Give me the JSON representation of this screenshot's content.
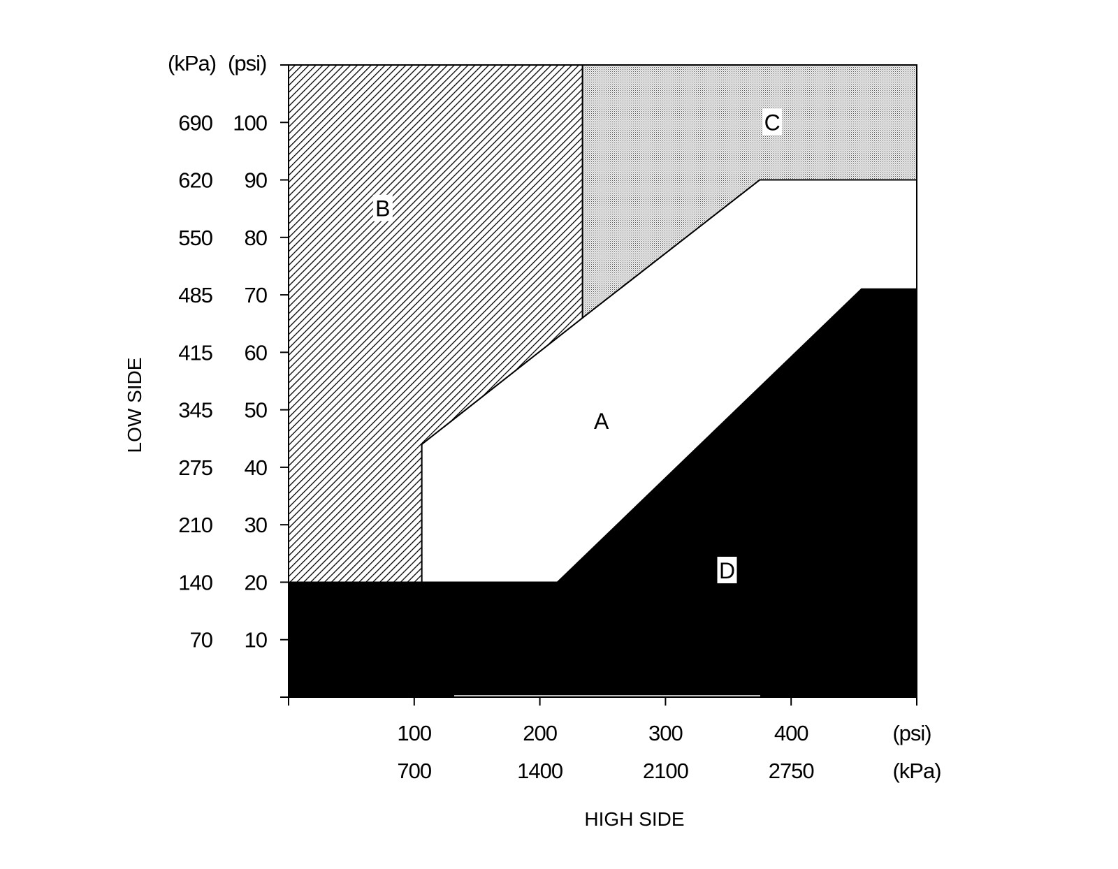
{
  "chart_data": {
    "type": "area",
    "title": "",
    "xlabel": "HIGH SIDE",
    "ylabel": "LOW SIDE",
    "xlim": [
      0,
      500
    ],
    "ylim": [
      0,
      110
    ],
    "grid": false,
    "x_ticks": [
      {
        "psi": "100",
        "kpa": "700"
      },
      {
        "psi": "200",
        "kpa": "1400"
      },
      {
        "psi": "300",
        "kpa": "2100"
      },
      {
        "psi": "400",
        "kpa": "2750"
      }
    ],
    "x_unit_labels": {
      "psi": "(psi)",
      "kpa": "(kPa)"
    },
    "y_ticks": [
      {
        "psi": "10",
        "kpa": "70"
      },
      {
        "psi": "20",
        "kpa": "140"
      },
      {
        "psi": "30",
        "kpa": "210"
      },
      {
        "psi": "40",
        "kpa": "275"
      },
      {
        "psi": "50",
        "kpa": "345"
      },
      {
        "psi": "60",
        "kpa": "415"
      },
      {
        "psi": "70",
        "kpa": "485"
      },
      {
        "psi": "80",
        "kpa": "550"
      },
      {
        "psi": "90",
        "kpa": "620"
      },
      {
        "psi": "100",
        "kpa": "690"
      }
    ],
    "y_unit_labels": {
      "kpa": "(kPa)",
      "psi": "(psi)"
    },
    "regions": [
      {
        "name": "A",
        "fill": "#ffffff",
        "polygon": [
          [
            106,
            20
          ],
          [
            106,
            44
          ],
          [
            234,
            66
          ],
          [
            375,
            90
          ],
          [
            500,
            90
          ],
          [
            500,
            71
          ],
          [
            456,
            71
          ],
          [
            214,
            20
          ]
        ],
        "label_at": [
          249,
          48
        ]
      },
      {
        "name": "B",
        "fill": "hatch",
        "polygon": [
          [
            0,
            20
          ],
          [
            0,
            110
          ],
          [
            234,
            110
          ],
          [
            234,
            66
          ],
          [
            106,
            44
          ],
          [
            106,
            20
          ]
        ],
        "label_at": [
          75,
          85
        ]
      },
      {
        "name": "C",
        "fill": "stipple",
        "polygon": [
          [
            234,
            110
          ],
          [
            500,
            110
          ],
          [
            500,
            90
          ],
          [
            375,
            90
          ],
          [
            234,
            66
          ]
        ],
        "label_at": [
          385,
          100
        ]
      },
      {
        "name": "D",
        "fill": "#000000",
        "polygon": [
          [
            0,
            0
          ],
          [
            0,
            20
          ],
          [
            214,
            20
          ],
          [
            456,
            71
          ],
          [
            500,
            71
          ],
          [
            500,
            0
          ]
        ],
        "label_at": [
          349,
          22
        ]
      }
    ]
  }
}
